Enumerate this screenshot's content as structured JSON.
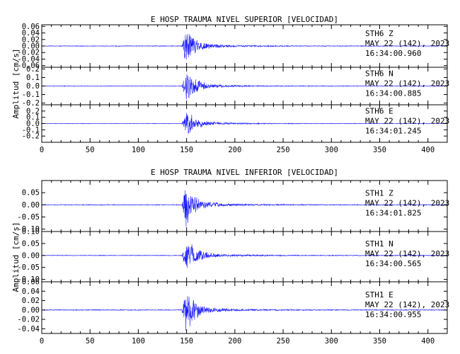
{
  "chart_data": [
    {
      "type": "line",
      "title": "E HOSP TRAUMA NIVEL SUPERIOR [VELOCIDAD]",
      "ylabel": "Amplitud [cm/s]",
      "xlim": [
        0,
        420
      ],
      "x_ticks": [
        "0",
        "50",
        "100",
        "150",
        "200",
        "250",
        "300",
        "350",
        "400"
      ],
      "panels": [
        {
          "station": "STH6",
          "component": "Z",
          "date": "MAY 22 (142), 2023",
          "time": "16:34:00.960",
          "ylim": [
            -0.065,
            0.065
          ],
          "y_ticks": [
            "0.06",
            "0.04",
            "0.02",
            "0.00",
            "-0.02",
            "-0.04",
            "-0.06"
          ],
          "peak_amplitude": 0.06,
          "onset_s": 145,
          "peak_s": 149
        },
        {
          "station": "STH6",
          "component": "N",
          "date": "MAY 22 (142), 2023",
          "time": "16:34:00.885",
          "ylim": [
            -0.22,
            0.22
          ],
          "y_ticks": [
            "0.2",
            "0.1",
            "0.0",
            "-0.1",
            "-0.2"
          ],
          "peak_amplitude": 0.2,
          "onset_s": 145,
          "peak_s": 150
        },
        {
          "station": "STH6",
          "component": "E",
          "date": "MAY 22 (142), 2023",
          "time": "16:34:01.245",
          "ylim": [
            -0.3,
            0.3
          ],
          "y_ticks": [
            "0.2",
            "0.1",
            "0.0",
            "-0.1",
            "-0.2"
          ],
          "peak_amplitude": 0.22,
          "onset_s": 145,
          "peak_s": 150
        }
      ]
    },
    {
      "type": "line",
      "title": "E HOSP TRAUMA NIVEL INFERIOR [VELOCIDAD]",
      "ylabel": "Amplitud [cm/s]",
      "xlim": [
        0,
        420
      ],
      "x_ticks": [
        "0",
        "50",
        "100",
        "150",
        "200",
        "250",
        "300",
        "350",
        "400"
      ],
      "panels": [
        {
          "station": "STH1",
          "component": "Z",
          "date": "MAY 22 (142), 2023",
          "time": "16:34:01.825",
          "ylim": [
            -0.11,
            0.1
          ],
          "y_ticks": [
            "0.05",
            "0.00",
            "-0.05",
            "-0.10"
          ],
          "peak_amplitude": 0.09,
          "onset_s": 145,
          "peak_s": 149
        },
        {
          "station": "STH1",
          "component": "N",
          "date": "MAY 22 (142), 2023",
          "time": "16:34:00.565",
          "ylim": [
            -0.11,
            0.1
          ],
          "y_ticks": [
            "0.10",
            "0.05",
            "0.00",
            "-0.05",
            "-0.10"
          ],
          "peak_amplitude": 0.08,
          "onset_s": 145,
          "peak_s": 149
        },
        {
          "station": "STH1",
          "component": "E",
          "date": "MAY 22 (142), 2023",
          "time": "16:34:00.955",
          "ylim": [
            -0.05,
            0.06
          ],
          "y_ticks": [
            "0.06",
            "0.04",
            "0.02",
            "0.00",
            "-0.02",
            "-0.04"
          ],
          "peak_amplitude": 0.05,
          "onset_s": 145,
          "peak_s": 149
        }
      ]
    }
  ],
  "colors": {
    "trace": "#1a1aff",
    "axis": "#000000"
  }
}
